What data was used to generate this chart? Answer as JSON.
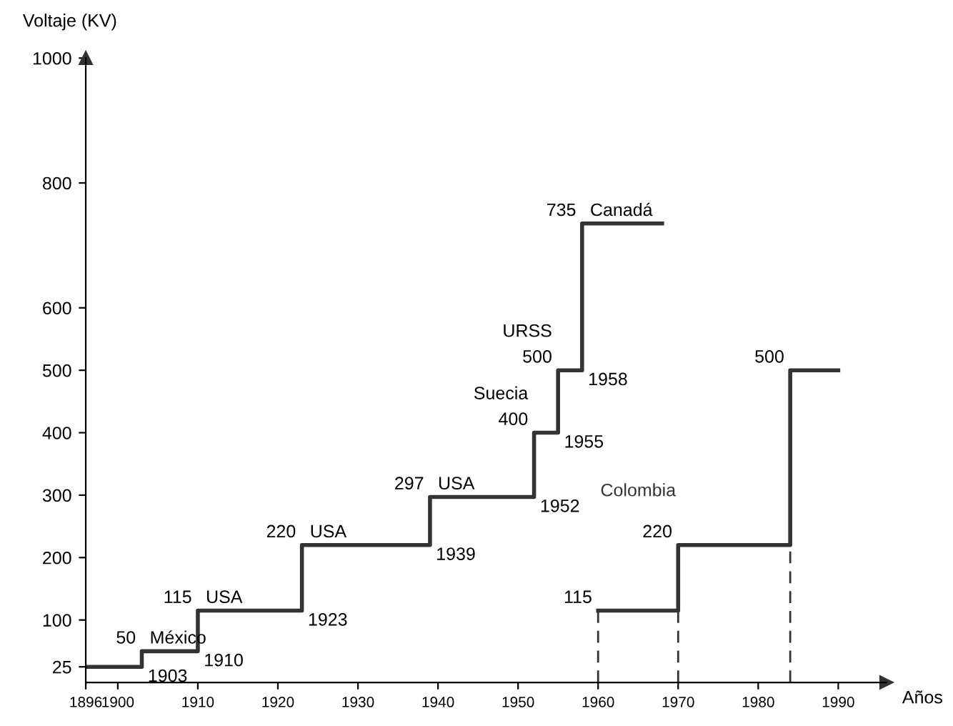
{
  "chart_data": {
    "type": "step",
    "ylabel": "Voltaje (KV)",
    "xlabel": "Años",
    "xlim": [
      1896,
      1996
    ],
    "xticks": [
      1896,
      1900,
      1910,
      1920,
      1930,
      1940,
      1950,
      1960,
      1970,
      1980,
      1990
    ],
    "ylim": [
      0,
      1000
    ],
    "yticks": [
      25,
      100,
      200,
      300,
      400,
      500,
      600,
      800,
      1000
    ],
    "grid": false,
    "legend": false,
    "line_style": "solid",
    "marker": "none",
    "series": [
      {
        "color": "#333333",
        "x": [
          1896,
          1903,
          1910,
          1923,
          1939,
          1952,
          1955,
          1958,
          1968
        ],
        "values": [
          25,
          50,
          115,
          220,
          297,
          400,
          500,
          735,
          735
        ],
        "value_labels": [
          null,
          "50",
          "115",
          "220",
          "297",
          "400",
          "500",
          "735",
          null
        ]
      },
      {
        "name": "Colombia",
        "color": "#333333",
        "x": [
          1960,
          1970,
          1984,
          1990
        ],
        "values": [
          115,
          220,
          500,
          500
        ],
        "value_labels": [
          "115",
          "220",
          "500",
          null
        ]
      }
    ],
    "ref_lines": [
      {
        "axis": "x",
        "value": 1960,
        "line_style": "dashed",
        "color": "#333333"
      },
      {
        "axis": "x",
        "value": 1970,
        "line_style": "dashed",
        "color": "#333333"
      },
      {
        "axis": "x",
        "value": 1984,
        "line_style": "dashed",
        "color": "#333333"
      }
    ],
    "annotations": [
      {
        "text": "México",
        "x": 1903,
        "y": 50
      },
      {
        "text": "1903",
        "x": 1903,
        "y": 25
      },
      {
        "text": "1910",
        "x": 1910,
        "y": 50
      },
      {
        "text": "USA",
        "x": 1910,
        "y": 115
      },
      {
        "text": "1923",
        "x": 1923,
        "y": 115
      },
      {
        "text": "USA",
        "x": 1923,
        "y": 220
      },
      {
        "text": "1939",
        "x": 1939,
        "y": 220
      },
      {
        "text": "USA",
        "x": 1939,
        "y": 297
      },
      {
        "text": "1952",
        "x": 1952,
        "y": 297
      },
      {
        "text": "Suecia",
        "x": 1952,
        "y": 400
      },
      {
        "text": "1955",
        "x": 1955,
        "y": 400
      },
      {
        "text": "URSS",
        "x": 1955,
        "y": 500
      },
      {
        "text": "1958",
        "x": 1958,
        "y": 500
      },
      {
        "text": "Canadá",
        "x": 1958,
        "y": 735
      }
    ]
  }
}
